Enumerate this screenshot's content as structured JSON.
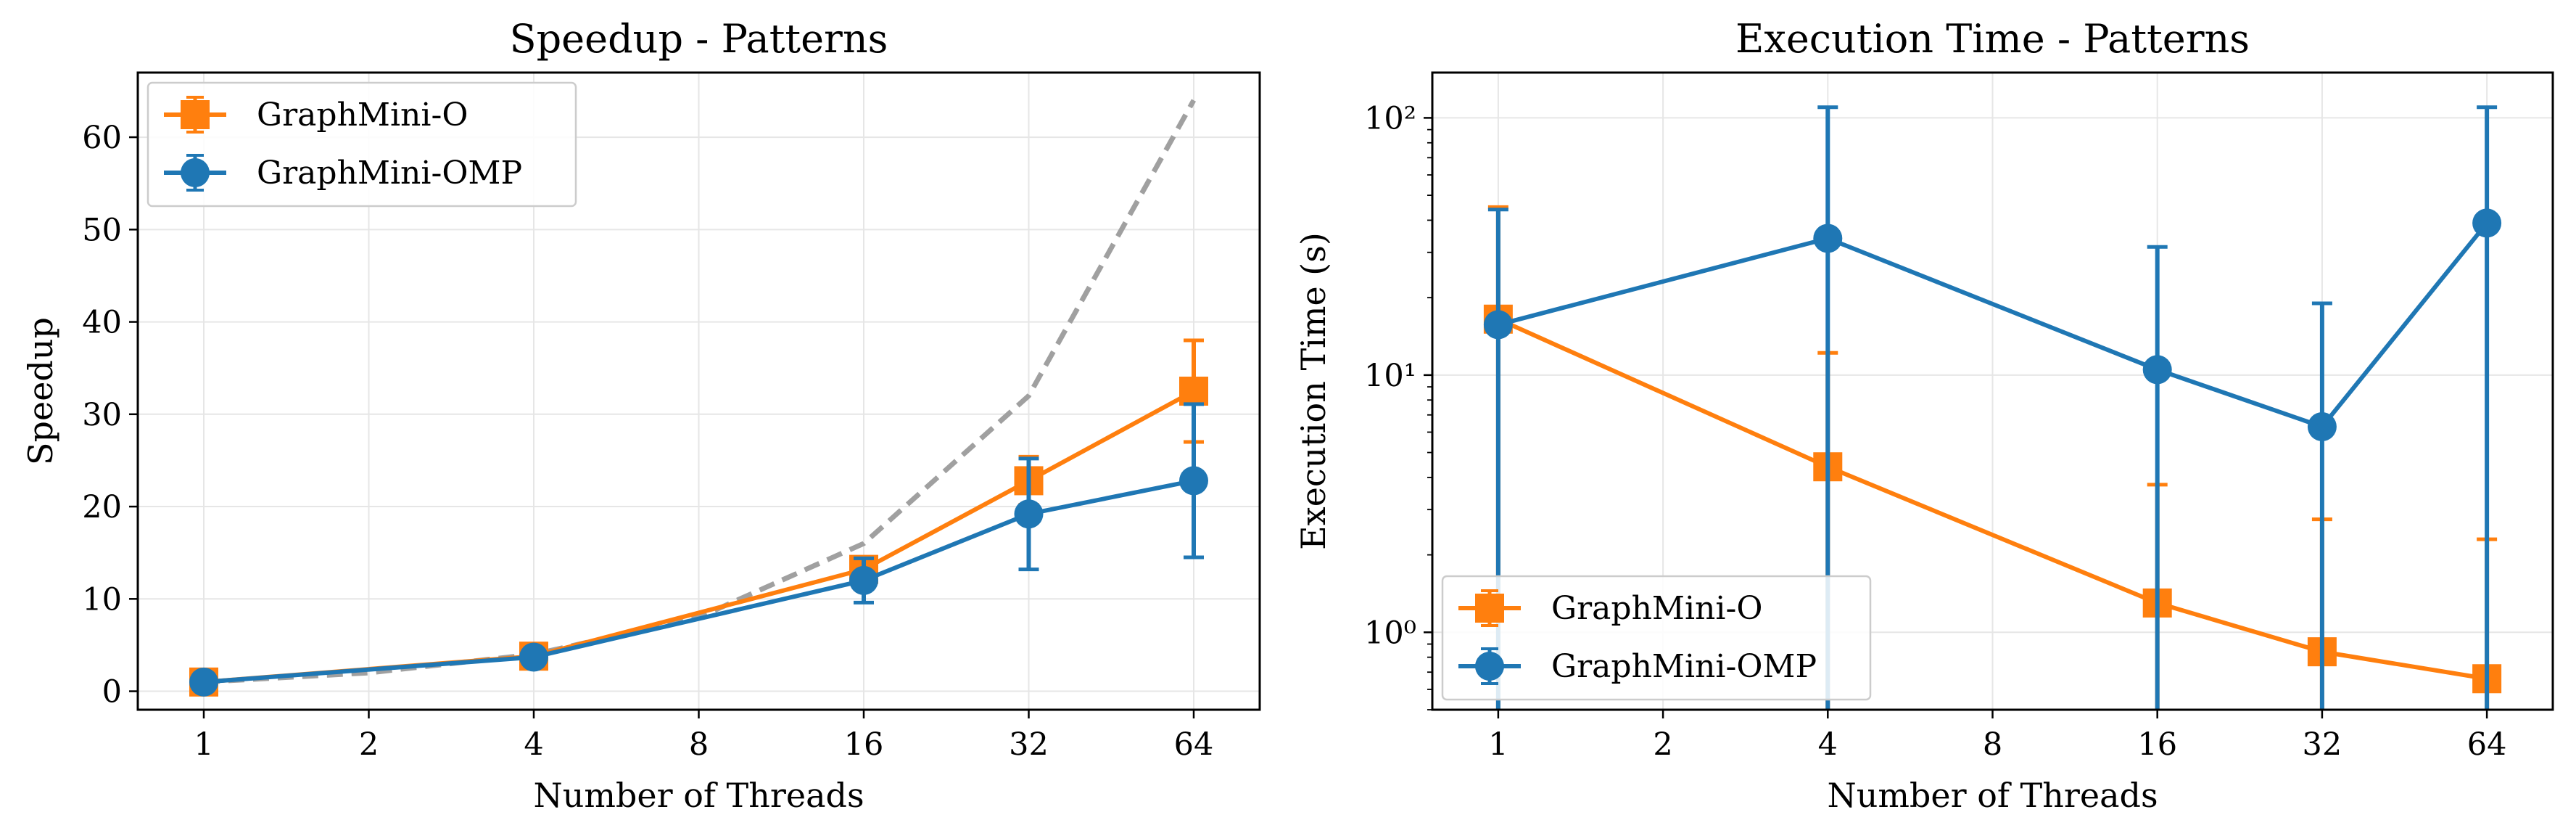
{
  "colors": {
    "series_o": "#ff7f0e",
    "series_omp": "#1f77b4",
    "ideal": "#a0a0a0",
    "grid": "#e6e6e6"
  },
  "chart_data": [
    {
      "type": "line",
      "title": "Speedup - Patterns",
      "xlabel": "Number of Threads",
      "ylabel": "Speedup",
      "x_scale": "log2",
      "x": [
        1,
        4,
        16,
        32,
        64
      ],
      "x_ticks": [
        "1",
        "2",
        "4",
        "8",
        "16",
        "32",
        "64"
      ],
      "y_scale": "linear",
      "ylim": [
        -2,
        67
      ],
      "y_ticks": [
        "0",
        "10",
        "20",
        "30",
        "40",
        "50",
        "60"
      ],
      "grid": true,
      "legend_position": "upper-left",
      "ideal_line": {
        "style": "dashed",
        "x": [
          1,
          2,
          4,
          8,
          16,
          32,
          64
        ],
        "y": [
          1,
          2,
          4,
          8,
          16,
          32,
          64
        ]
      },
      "series": [
        {
          "name": "GraphMini-O",
          "marker": "square",
          "values": [
            1.0,
            3.8,
            13.2,
            22.8,
            32.5
          ],
          "err_low": [
            0.8,
            0.3,
            0.5,
            2.6,
            5.5
          ],
          "err_high": [
            0.8,
            0.3,
            0.5,
            2.6,
            5.5
          ]
        },
        {
          "name": "GraphMini-OMP",
          "marker": "circle",
          "values": [
            1.0,
            3.7,
            12.0,
            19.2,
            22.8
          ],
          "err_low": [
            0.3,
            0.3,
            2.4,
            6.0,
            8.3
          ],
          "err_high": [
            0.3,
            0.3,
            2.4,
            6.0,
            8.3
          ]
        }
      ]
    },
    {
      "type": "line",
      "title": "Execution Time - Patterns",
      "xlabel": "Number of Threads",
      "ylabel": "Execution Time (s)",
      "x_scale": "log2",
      "x": [
        1,
        4,
        16,
        32,
        64
      ],
      "x_ticks": [
        "1",
        "2",
        "4",
        "8",
        "16",
        "32",
        "64"
      ],
      "y_scale": "log10",
      "ylim": [
        0.5,
        150
      ],
      "y_ticks": [
        "10⁰",
        "10¹",
        "10²"
      ],
      "grid": true,
      "legend_position": "lower-left",
      "series": [
        {
          "name": "GraphMini-O",
          "marker": "square",
          "values": [
            16.5,
            4.4,
            1.3,
            0.84,
            0.66
          ],
          "err_high": [
            45.0,
            12.2,
            3.75,
            2.75,
            2.3
          ]
        },
        {
          "name": "GraphMini-OMP",
          "marker": "circle",
          "values": [
            15.7,
            34.0,
            10.5,
            6.3,
            39.0
          ],
          "err_high": [
            44.0,
            110.0,
            31.5,
            19.0,
            110.0
          ]
        }
      ]
    }
  ]
}
